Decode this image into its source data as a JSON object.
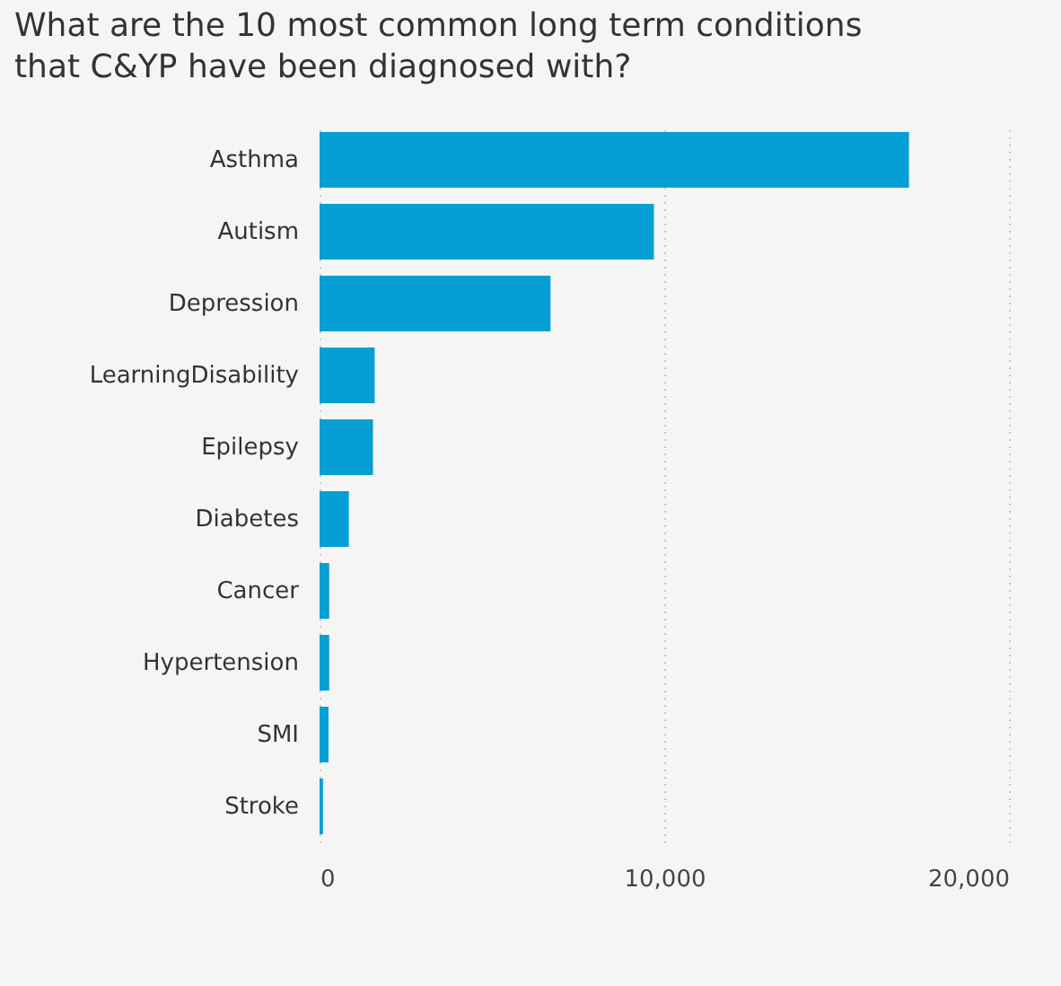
{
  "chart_data": {
    "type": "bar",
    "orientation": "horizontal",
    "title": [
      "What are the 10 most common long term conditions",
      "that C&YP have been diagnosed with?"
    ],
    "categories": [
      "Asthma",
      "Autism",
      "Depression",
      "LearningDisability",
      "Epilepsy",
      "Diabetes",
      "Cancer",
      "Hypertension",
      "SMI",
      "Stroke"
    ],
    "values": [
      17100,
      9700,
      6700,
      1600,
      1550,
      850,
      280,
      280,
      260,
      100
    ],
    "color": "#059fd4",
    "xlim": [
      0,
      20000
    ],
    "xticks": [
      {
        "value": 0,
        "label": "0"
      },
      {
        "value": 10000,
        "label": "10,000"
      },
      {
        "value": 20000,
        "label": "20,000"
      }
    ],
    "grid": "x"
  }
}
